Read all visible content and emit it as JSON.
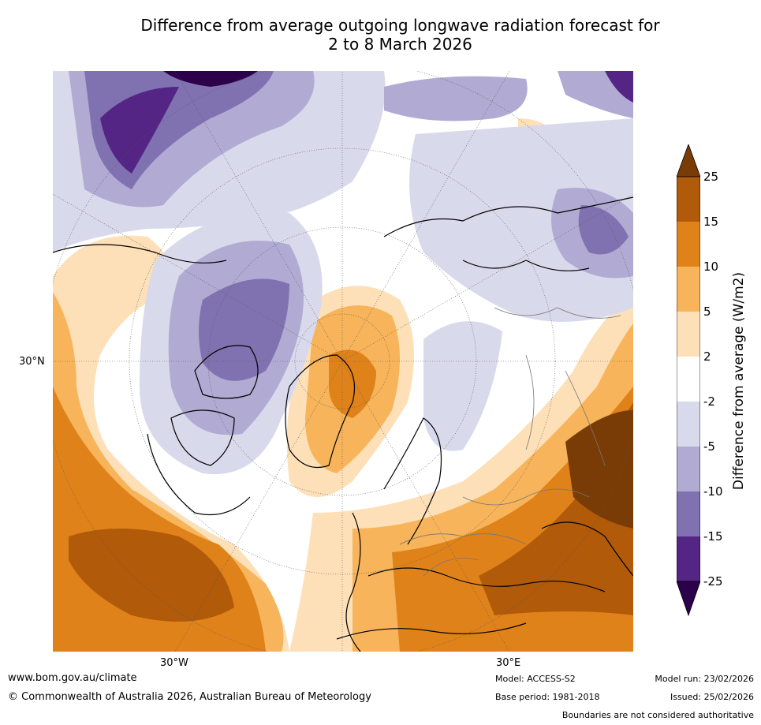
{
  "title": {
    "line1": "Difference from average outgoing longwave radiation forecast for",
    "line2": "2 to 8 March 2026"
  },
  "map": {
    "projection": "north polar stereographic",
    "lat_label": "30°N",
    "lon_labels": [
      "30°W",
      "30°E"
    ]
  },
  "colorbar": {
    "label": "Difference from average (W/m2)",
    "ticks": [
      "25",
      "15",
      "10",
      "5",
      "2",
      "-2",
      "-5",
      "-10",
      "-15",
      "-25"
    ],
    "colors": [
      "#7a3c06",
      "#b05a0a",
      "#e0821a",
      "#f7b45a",
      "#fde0b8",
      "#ffffff",
      "#d9d9ec",
      "#b1abd3",
      "#8072b0",
      "#552586",
      "#2d004b"
    ]
  },
  "footer": {
    "website": "www.bom.gov.au/climate",
    "copyright": "© Commonwealth of Australia 2026, Australian Bureau of Meteorology",
    "model": "Model: ACCESS-S2",
    "base_period": "Base period: 1981-2018",
    "model_run": "Model run: 23/02/2026",
    "issued": "Issued: 25/02/2026",
    "disclaimer": "Boundaries are not considered authoritative"
  }
}
